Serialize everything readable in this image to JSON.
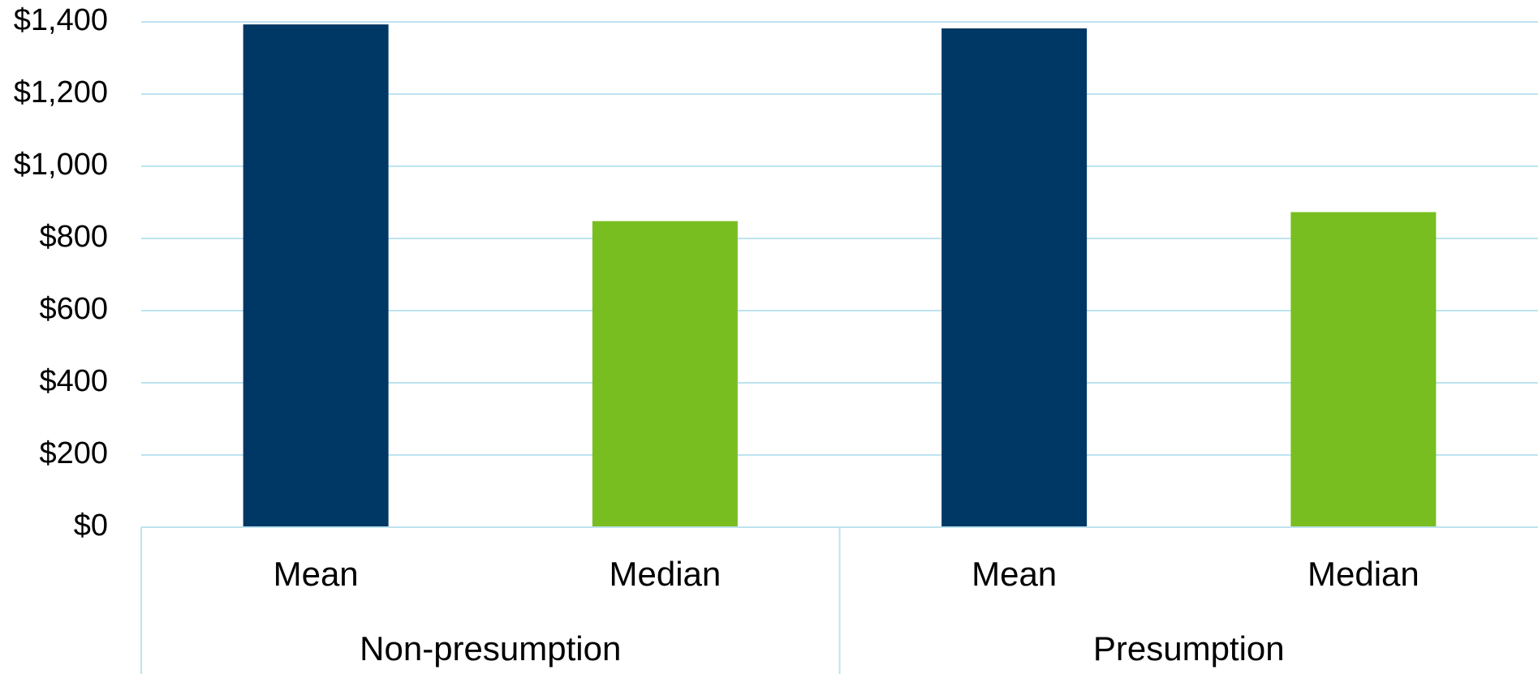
{
  "chart_data": {
    "type": "bar",
    "title": "",
    "xlabel": "",
    "ylabel": "",
    "ylim": [
      0,
      1400
    ],
    "yticks": [
      0,
      200,
      400,
      600,
      800,
      1000,
      1200,
      1400
    ],
    "ytick_labels": [
      "$0",
      "$200",
      "$400",
      "$600",
      "$800",
      "$1,000",
      "$1,200",
      "$1,400"
    ],
    "groups": [
      {
        "name": "Non-presumption",
        "categories": [
          "Mean",
          "Median"
        ],
        "values": [
          1393,
          848
        ]
      },
      {
        "name": "Presumption",
        "categories": [
          "Mean",
          "Median"
        ],
        "values": [
          1382,
          873
        ]
      }
    ],
    "colors": {
      "Mean": "#003865",
      "Median": "#78BE21"
    },
    "grid": true,
    "grid_color": "#BEE3F0",
    "legend": "none"
  }
}
